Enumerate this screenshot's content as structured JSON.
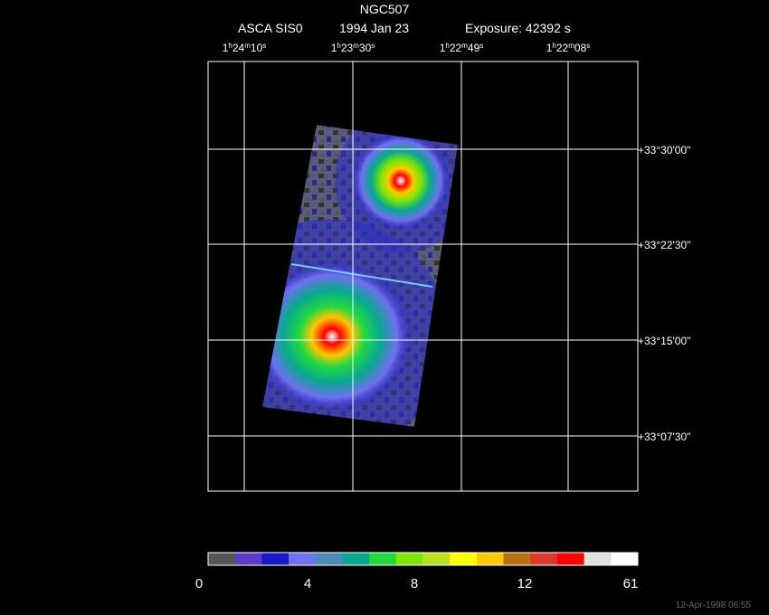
{
  "header": {
    "title": "NGC507",
    "instrument": "ASCA SIS0",
    "date": "1994 Jan 23",
    "exposure": "Exposure: 42392 s"
  },
  "ra_labels": [
    "1h24m10s",
    "1h23m30s",
    "1h22m49s",
    "1h22m08s"
  ],
  "dec_labels": [
    "+33°30'00\"",
    "+33°22'30\"",
    "+33°15'00\"",
    "+33°07'30\""
  ],
  "colorbar": {
    "colors": [
      "#555555",
      "#5a3cc8",
      "#1818c8",
      "#7070f0",
      "#4a8ab8",
      "#08a890",
      "#20d840",
      "#80e800",
      "#b8e020",
      "#ffff00",
      "#ffc800",
      "#b87010",
      "#e03828",
      "#ff0000",
      "#e0e0e0",
      "#ffffff"
    ],
    "labels": [
      0,
      4,
      8,
      12,
      61
    ]
  },
  "footer": "12-Apr-1998 06:55"
}
